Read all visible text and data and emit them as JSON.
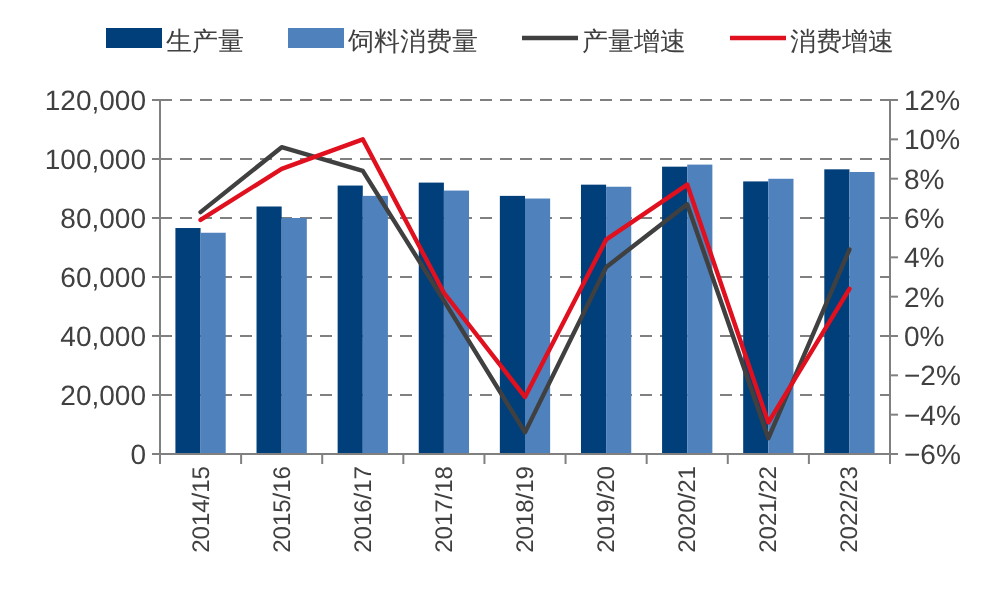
{
  "chart_data": {
    "type": "bar",
    "categories": [
      "2014/15",
      "2015/16",
      "2016/17",
      "2017/18",
      "2018/19",
      "2019/20",
      "2020/21",
      "2021/22",
      "2022/23"
    ],
    "series": [
      {
        "name": "生产量",
        "color": "#003f7a",
        "values": [
          76600,
          83900,
          91000,
          92000,
          87500,
          91300,
          97400,
          92400,
          96500
        ]
      },
      {
        "name": "饲料消费量",
        "color": "#4f81bd",
        "values": [
          75000,
          80000,
          87500,
          89300,
          86600,
          90600,
          98100,
          93300,
          95600
        ]
      },
      {
        "name": "产量增速",
        "type": "line",
        "axis": "y2",
        "color": "#404040",
        "values": [
          6.3,
          9.6,
          8.4,
          1.8,
          -4.9,
          3.5,
          6.7,
          -5.2,
          4.4
        ]
      },
      {
        "name": "消费增速",
        "type": "line",
        "axis": "y2",
        "color": "#e0101e",
        "values": [
          5.9,
          8.5,
          10.0,
          2.2,
          -3.1,
          4.9,
          7.7,
          -4.4,
          2.4
        ]
      }
    ],
    "ylim": [
      0,
      120000
    ],
    "yticks": [
      {
        "value": 0,
        "label": "0"
      },
      {
        "value": 20000,
        "label": "20,000"
      },
      {
        "value": 40000,
        "label": "40,000"
      },
      {
        "value": 60000,
        "label": "60,000"
      },
      {
        "value": 80000,
        "label": "80,000"
      },
      {
        "value": 100000,
        "label": "100,000"
      },
      {
        "value": 120000,
        "label": "120,000"
      }
    ],
    "y2lim": [
      -6,
      12
    ],
    "y2ticks": [
      {
        "value": -6,
        "label": "−6%"
      },
      {
        "value": -4,
        "label": "−4%"
      },
      {
        "value": -2,
        "label": "−2%"
      },
      {
        "value": 0,
        "label": "0%"
      },
      {
        "value": 2,
        "label": "2%"
      },
      {
        "value": 4,
        "label": "4%"
      },
      {
        "value": 6,
        "label": "6%"
      },
      {
        "value": 8,
        "label": "8%"
      },
      {
        "value": 10,
        "label": "10%"
      },
      {
        "value": 12,
        "label": "12%"
      }
    ],
    "grid": "y",
    "legend": "top",
    "line_style": "solid",
    "marker": "none"
  }
}
